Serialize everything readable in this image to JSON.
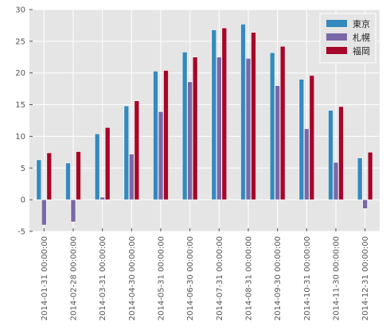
{
  "chart_data": {
    "type": "bar",
    "categories": [
      "2014-01-31 00:00:00",
      "2014-02-28 00:00:00",
      "2014-03-31 00:00:00",
      "2014-04-30 00:00:00",
      "2014-05-31 00:00:00",
      "2014-06-30 00:00:00",
      "2014-07-31 00:00:00",
      "2014-08-31 00:00:00",
      "2014-09-30 00:00:00",
      "2014-10-31 00:00:00",
      "2014-11-30 00:00:00",
      "2014-12-31 00:00:00"
    ],
    "series": [
      {
        "name": "東京",
        "color": "#348abd",
        "values": [
          6.3,
          5.8,
          10.4,
          14.8,
          20.3,
          23.3,
          26.8,
          27.7,
          23.2,
          19.0,
          14.1,
          6.6
        ]
      },
      {
        "name": "札幌",
        "color": "#7a68a6",
        "values": [
          -4.0,
          -3.5,
          0.4,
          7.2,
          13.9,
          18.6,
          22.5,
          22.3,
          18.0,
          11.2,
          5.9,
          -1.4
        ]
      },
      {
        "name": "福岡",
        "color": "#a60628",
        "values": [
          7.4,
          7.6,
          11.4,
          15.6,
          20.4,
          22.5,
          27.1,
          26.4,
          24.2,
          19.6,
          14.7,
          7.5
        ]
      }
    ],
    "ylim": [
      -5,
      30
    ],
    "yticks": [
      -5,
      0,
      5,
      10,
      15,
      20,
      25,
      30
    ],
    "grid": true,
    "legend_position": "top-right",
    "title": "",
    "xlabel": "",
    "ylabel": ""
  }
}
